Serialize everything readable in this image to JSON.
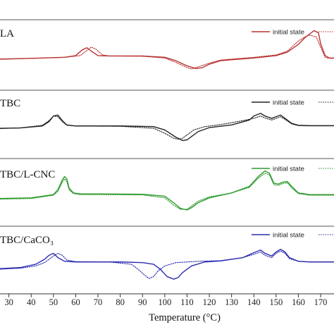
{
  "chart_data": {
    "type": "line",
    "xlabel": "Temperature (°C)",
    "xlim": [
      26,
      176
    ],
    "xticks": [
      30,
      40,
      50,
      60,
      70,
      80,
      90,
      100,
      110,
      120,
      130,
      140,
      150,
      160,
      170
    ],
    "xtick_labels": [
      "30",
      "40",
      "50",
      "60",
      "70",
      "80",
      "90",
      "100",
      "110",
      "120",
      "130",
      "140",
      "150",
      "160",
      "170"
    ],
    "panels": [
      {
        "label": "LA",
        "color": "#b83232",
        "legend": [
          "initial state",
          ""
        ],
        "ylim": [
          -1,
          1
        ],
        "series": [
          {
            "name": "initial state",
            "style": "solid",
            "x": [
              26,
              40,
              55,
              60,
              63,
              65,
              67,
              70,
              75,
              90,
              100,
              105,
              110,
              114,
              117,
              120,
              125,
              130,
              140,
              150,
              155,
              160,
              163,
              165,
              167,
              169,
              170,
              172,
              174,
              176
            ],
            "y": [
              -0.15,
              -0.13,
              -0.1,
              -0.05,
              0.12,
              0.18,
              0.08,
              -0.05,
              -0.06,
              -0.06,
              -0.1,
              -0.2,
              -0.35,
              -0.43,
              -0.4,
              -0.3,
              -0.2,
              -0.17,
              -0.12,
              -0.05,
              0.05,
              0.28,
              0.48,
              0.58,
              0.68,
              0.62,
              0.3,
              -0.05,
              -0.12,
              -0.12
            ]
          },
          {
            "name": "",
            "style": "dotted",
            "x": [
              26,
              40,
              55,
              62,
              65,
              67,
              69,
              72,
              75,
              90,
              100,
              105,
              110,
              112,
              115,
              120,
              125,
              130,
              140,
              150,
              155,
              160,
              163,
              165,
              168,
              170,
              172,
              174,
              176
            ],
            "y": [
              -0.16,
              -0.13,
              -0.1,
              -0.05,
              0.1,
              0.2,
              0.14,
              -0.03,
              -0.06,
              -0.07,
              -0.12,
              -0.25,
              -0.4,
              -0.44,
              -0.38,
              -0.27,
              -0.18,
              -0.15,
              -0.1,
              -0.03,
              0.08,
              0.38,
              0.5,
              0.55,
              0.5,
              0.2,
              -0.1,
              -0.13,
              -0.13
            ]
          }
        ]
      },
      {
        "label": "TBC",
        "color": "#222222",
        "legend": [
          "initial state",
          ""
        ],
        "ylim": [
          -1,
          1
        ],
        "series": [
          {
            "name": "initial state",
            "style": "solid",
            "x": [
              26,
              35,
              45,
              48,
              50,
              52,
              54,
              56,
              60,
              80,
              95,
              100,
              105,
              108,
              110,
              112,
              115,
              120,
              130,
              138,
              140,
              143,
              145,
              148,
              150,
              152,
              154,
              157,
              160,
              165,
              176
            ],
            "y": [
              -0.15,
              -0.14,
              -0.08,
              0.05,
              0.22,
              0.25,
              0.08,
              -0.05,
              -0.08,
              -0.08,
              -0.1,
              -0.2,
              -0.42,
              -0.52,
              -0.5,
              -0.4,
              -0.25,
              -0.13,
              -0.05,
              0.1,
              0.22,
              0.3,
              0.22,
              0.15,
              0.2,
              0.25,
              0.15,
              0.0,
              -0.06,
              -0.07,
              -0.07
            ]
          },
          {
            "name": "",
            "style": "dotted",
            "x": [
              26,
              35,
              45,
              48,
              50,
              52,
              54,
              56,
              60,
              80,
              95,
              100,
              104,
              106,
              108,
              110,
              113,
              118,
              125,
              135,
              140,
              143,
              145,
              148,
              150,
              152,
              154,
              157,
              160,
              165,
              176
            ],
            "y": [
              -0.16,
              -0.14,
              -0.06,
              0.08,
              0.22,
              0.2,
              0.05,
              -0.06,
              -0.08,
              -0.09,
              -0.15,
              -0.3,
              -0.45,
              -0.48,
              -0.45,
              -0.35,
              -0.2,
              -0.1,
              -0.04,
              0.08,
              0.15,
              0.22,
              0.16,
              0.1,
              0.15,
              0.2,
              0.12,
              -0.02,
              -0.07,
              -0.08,
              -0.08
            ]
          }
        ]
      },
      {
        "label": "TBC/L-CNC",
        "color": "#2d9a2d",
        "legend": [
          "initial state",
          ""
        ],
        "ylim": [
          -1,
          1
        ],
        "series": [
          {
            "name": "initial state",
            "style": "solid",
            "x": [
              26,
              40,
              50,
              52,
              54,
              55,
              56,
              57,
              59,
              62,
              70,
              90,
              100,
              104,
              107,
              110,
              112,
              115,
              120,
              130,
              138,
              142,
              145,
              147,
              149,
              151,
              153,
              155,
              157,
              160,
              165,
              176
            ],
            "y": [
              -0.22,
              -0.2,
              -0.1,
              0.05,
              0.35,
              0.45,
              0.38,
              0.1,
              -0.05,
              -0.08,
              -0.08,
              -0.09,
              -0.15,
              -0.35,
              -0.52,
              -0.57,
              -0.5,
              -0.35,
              -0.2,
              -0.05,
              0.15,
              0.45,
              0.62,
              0.55,
              0.25,
              0.22,
              0.28,
              0.3,
              0.15,
              -0.05,
              -0.1,
              -0.1
            ]
          },
          {
            "name": "",
            "style": "dotted",
            "x": [
              26,
              40,
              50,
              52,
              54,
              55,
              56,
              57,
              59,
              62,
              70,
              90,
              100,
              104,
              107,
              110,
              112,
              115,
              120,
              130,
              138,
              142,
              145,
              147,
              149,
              151,
              153,
              155,
              157,
              160,
              165,
              176
            ],
            "y": [
              -0.24,
              -0.22,
              -0.12,
              0.0,
              0.28,
              0.38,
              0.3,
              0.05,
              -0.07,
              -0.1,
              -0.1,
              -0.11,
              -0.2,
              -0.42,
              -0.55,
              -0.55,
              -0.45,
              -0.3,
              -0.17,
              -0.05,
              0.12,
              0.4,
              0.55,
              0.5,
              0.2,
              0.18,
              0.24,
              0.26,
              0.1,
              -0.07,
              -0.12,
              -0.12
            ]
          }
        ]
      },
      {
        "label": "TBC/CaCO₃",
        "color": "#2a2ab0",
        "legend": [
          "initial state",
          ""
        ],
        "ylim": [
          -1,
          1
        ],
        "series": [
          {
            "name": "initial state",
            "style": "solid",
            "x": [
              26,
              35,
              42,
              46,
              48,
              50,
              52,
              55,
              60,
              80,
              90,
              95,
              98,
              101,
              104,
              106,
              108,
              112,
              118,
              125,
              135,
              140,
              143,
              145,
              148,
              150,
              152,
              154,
              156,
              160,
              165,
              176
            ],
            "y": [
              -0.28,
              -0.25,
              -0.15,
              0.0,
              0.12,
              0.18,
              0.05,
              -0.06,
              -0.08,
              -0.08,
              -0.1,
              -0.15,
              -0.3,
              -0.52,
              -0.6,
              -0.55,
              -0.4,
              -0.2,
              -0.08,
              -0.05,
              0.05,
              0.2,
              0.28,
              0.18,
              0.1,
              0.22,
              0.3,
              0.22,
              0.05,
              -0.06,
              -0.08,
              -0.08
            ]
          },
          {
            "name": "",
            "style": "dotted",
            "x": [
              26,
              35,
              42,
              46,
              50,
              52,
              54,
              56,
              60,
              75,
              85,
              88,
              91,
              93,
              95,
              97,
              100,
              105,
              115,
              125,
              135,
              140,
              143,
              145,
              148,
              150,
              152,
              154,
              156,
              160,
              165,
              176
            ],
            "y": [
              -0.3,
              -0.27,
              -0.2,
              -0.1,
              0.1,
              0.18,
              0.12,
              -0.02,
              -0.07,
              -0.08,
              -0.15,
              -0.3,
              -0.48,
              -0.58,
              -0.52,
              -0.35,
              -0.2,
              -0.1,
              -0.06,
              -0.04,
              0.05,
              0.15,
              0.22,
              0.12,
              0.05,
              0.18,
              0.25,
              0.18,
              0.02,
              -0.06,
              -0.08,
              -0.08
            ]
          }
        ]
      }
    ]
  }
}
